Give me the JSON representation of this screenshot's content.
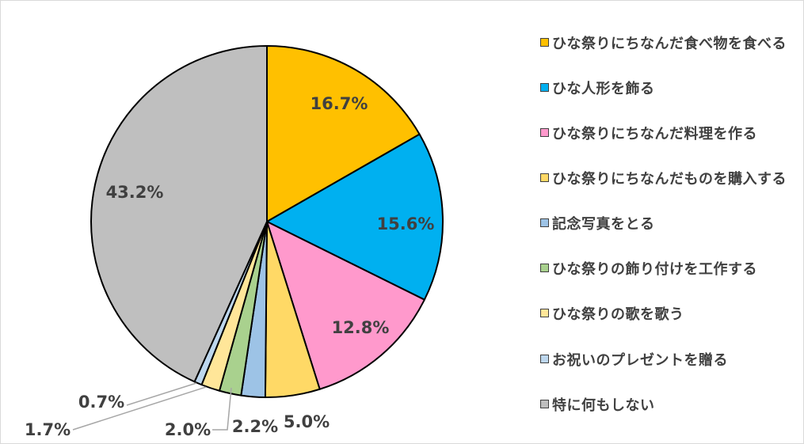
{
  "chart_data": {
    "type": "pie",
    "title": "",
    "categories": [
      "ひな祭りにちなんだ食べ物を食べる",
      "ひな人形を飾る",
      "ひな祭りにちなんだ料理を作る",
      "ひな祭りにちなんだものを購入する",
      "記念写真をとる",
      "ひな祭りの飾り付けを工作する",
      "ひな祭りの歌を歌う",
      "お祝いのプレゼントを贈る",
      "特に何もしない"
    ],
    "values": [
      16.7,
      15.6,
      12.8,
      5.0,
      2.2,
      2.0,
      1.7,
      0.7,
      43.2
    ],
    "data_labels": [
      "16.7%",
      "15.6%",
      "12.8%",
      "5.0%",
      "2.2%",
      "2.0%",
      "1.7%",
      "0.7%",
      "43.2%"
    ],
    "colors": [
      "#FFC000",
      "#00B0F0",
      "#FF99CC",
      "#FFD966",
      "#9DC3E6",
      "#A9D18E",
      "#FFE699",
      "#BDD7EE",
      "#BFBFBF"
    ],
    "legend_position": "right",
    "start_angle": "12 o'clock, clockwise"
  }
}
